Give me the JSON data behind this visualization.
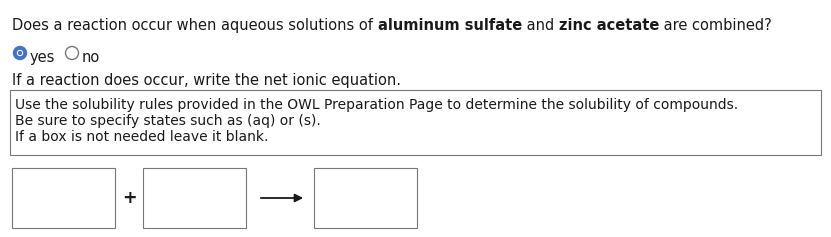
{
  "background_color": "#ffffff",
  "text_color": "#1a1a1a",
  "box_edge_color": "#777777",
  "radio_selected_color": "#4472c4",
  "font_family": "DejaVu Sans",
  "font_size": 10.5,
  "question_parts": [
    {
      "text": "Does a reaction occur when aqueous solutions of ",
      "bold": false
    },
    {
      "text": "aluminum sulfate",
      "bold": true
    },
    {
      "text": " and ",
      "bold": false
    },
    {
      "text": "zinc acetate",
      "bold": true
    },
    {
      "text": " are combined?",
      "bold": false
    }
  ],
  "yes_label": "yes",
  "no_label": "no",
  "followup_text": "If a reaction does occur, write the net ionic equation.",
  "info_lines": [
    "Use the solubility rules provided in the OWL Preparation Page to determine the solubility of compounds.",
    "Be sure to specify states such as (aq) or (s).",
    "If a box is not needed leave it blank."
  ],
  "figwidth": 8.31,
  "figheight": 2.37,
  "dpi": 100
}
